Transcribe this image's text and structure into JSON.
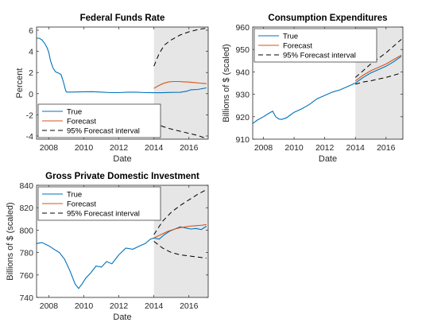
{
  "chart_data": [
    {
      "type": "line",
      "title": "Federal Funds Rate",
      "xlabel": "Date",
      "ylabel": "Percent",
      "xlim": [
        2007.3,
        2017.1
      ],
      "ylim": [
        -4.3,
        6.3
      ],
      "xticks": [
        2008,
        2010,
        2012,
        2014,
        2016
      ],
      "yticks": [
        -4,
        -2,
        0,
        2,
        4,
        6
      ],
      "forecast_start": 2014,
      "grid": false,
      "legend": [
        "True",
        "Forecast",
        "95% Forecast interval"
      ],
      "legend_position": "bottom-left",
      "series": [
        {
          "name": "True",
          "x": [
            2007.3,
            2007.45,
            2007.6,
            2007.75,
            2007.9,
            2008.0,
            2008.1,
            2008.25,
            2008.4,
            2008.55,
            2008.7,
            2008.85,
            2008.95,
            2009.0,
            2009.1,
            2009.5,
            2010.0,
            2010.5,
            2011.0,
            2011.5,
            2012.0,
            2012.5,
            2013.0,
            2013.5,
            2014.0,
            2014.5,
            2015.0,
            2015.5,
            2015.9,
            2016.1,
            2016.5,
            2017.0
          ],
          "y": [
            5.25,
            5.25,
            5.1,
            4.8,
            4.35,
            3.9,
            3.1,
            2.4,
            2.05,
            1.95,
            1.8,
            1.0,
            0.35,
            0.16,
            0.15,
            0.16,
            0.18,
            0.19,
            0.15,
            0.1,
            0.1,
            0.14,
            0.14,
            0.1,
            0.09,
            0.09,
            0.12,
            0.13,
            0.24,
            0.37,
            0.4,
            0.55
          ]
        },
        {
          "name": "Forecast",
          "x": [
            2014.0,
            2014.2,
            2014.5,
            2014.8,
            2015.1,
            2015.4,
            2015.7,
            2016.0,
            2016.3,
            2016.6,
            2017.0
          ],
          "y": [
            0.5,
            0.7,
            0.95,
            1.1,
            1.15,
            1.15,
            1.12,
            1.1,
            1.05,
            1.0,
            0.95
          ]
        },
        {
          "name": "95% Forecast interval",
          "x": [
            2014.0,
            2014.3,
            2014.6,
            2015.0,
            2015.5,
            2016.0,
            2016.5,
            2017.0
          ],
          "y": [
            2.6,
            3.8,
            4.6,
            5.1,
            5.55,
            5.85,
            6.05,
            6.2
          ]
        },
        {
          "name": "95% Forecast interval",
          "x": [
            2014.0,
            2014.5,
            2015.0,
            2015.5,
            2016.0,
            2016.5,
            2017.0
          ],
          "y": [
            -2.7,
            -3.1,
            -3.35,
            -3.55,
            -3.75,
            -3.95,
            -4.25
          ]
        }
      ]
    },
    {
      "type": "line",
      "title": "Consumption Expenditures",
      "xlabel": "Date",
      "ylabel": "Billions of $ (scaled)",
      "xlim": [
        2007.3,
        2017.1
      ],
      "ylim": [
        910,
        960
      ],
      "xticks": [
        2008,
        2010,
        2012,
        2014,
        2016
      ],
      "yticks": [
        910,
        920,
        930,
        940,
        950,
        960
      ],
      "forecast_start": 2014,
      "grid": false,
      "legend": [
        "True",
        "Forecast",
        "95% Forecast interval"
      ],
      "legend_position": "top-left",
      "series": [
        {
          "name": "True",
          "x": [
            2007.3,
            2007.6,
            2008.0,
            2008.3,
            2008.6,
            2008.8,
            2009.0,
            2009.2,
            2009.5,
            2009.8,
            2010.0,
            2010.5,
            2011.0,
            2011.5,
            2012.0,
            2012.5,
            2013.0,
            2013.5,
            2014.0,
            2014.5,
            2015.0,
            2015.5,
            2016.0,
            2016.5,
            2017.0
          ],
          "y": [
            917.0,
            918.5,
            920.0,
            921.3,
            922.5,
            920.0,
            919.0,
            918.8,
            919.5,
            921.0,
            922.0,
            923.5,
            925.5,
            928.0,
            929.5,
            931.0,
            932.0,
            933.5,
            935.0,
            937.5,
            939.5,
            941.0,
            942.5,
            944.5,
            947.0
          ]
        },
        {
          "name": "Forecast",
          "x": [
            2014.0,
            2014.5,
            2015.0,
            2015.5,
            2016.0,
            2016.5,
            2017.0
          ],
          "y": [
            936.0,
            938.5,
            940.5,
            942.0,
            943.5,
            945.5,
            947.5
          ]
        },
        {
          "name": "95% Forecast interval",
          "x": [
            2014.0,
            2014.5,
            2015.0,
            2015.5,
            2016.0,
            2016.5,
            2017.0
          ],
          "y": [
            937.5,
            940.5,
            943.5,
            946.0,
            948.5,
            951.5,
            954.5
          ]
        },
        {
          "name": "95% Forecast interval",
          "x": [
            2014.0,
            2014.5,
            2015.0,
            2015.5,
            2016.0,
            2016.5,
            2017.0
          ],
          "y": [
            934.5,
            935.5,
            936.0,
            936.8,
            937.5,
            938.5,
            939.5
          ]
        }
      ]
    },
    {
      "type": "line",
      "title": "Gross Private Domestic Investment",
      "xlabel": "Date",
      "ylabel": "Billions of $ (scaled)",
      "xlim": [
        2007.3,
        2017.1
      ],
      "ylim": [
        740,
        840
      ],
      "xticks": [
        2008,
        2010,
        2012,
        2014,
        2016
      ],
      "yticks": [
        740,
        760,
        780,
        800,
        820,
        840
      ],
      "forecast_start": 2014,
      "grid": false,
      "legend": [
        "True",
        "Forecast",
        "95% Forecast interval"
      ],
      "legend_position": "top-left",
      "series": [
        {
          "name": "True",
          "x": [
            2007.3,
            2007.6,
            2008.0,
            2008.3,
            2008.6,
            2008.9,
            2009.2,
            2009.5,
            2009.7,
            2009.9,
            2010.1,
            2010.4,
            2010.7,
            2011.0,
            2011.3,
            2011.6,
            2012.0,
            2012.4,
            2012.8,
            2013.2,
            2013.5,
            2013.8,
            2014.0,
            2014.3,
            2014.6,
            2014.9,
            2015.2,
            2015.5,
            2015.8,
            2016.1,
            2016.4,
            2016.7,
            2017.0
          ],
          "y": [
            788.0,
            789.0,
            786.0,
            783.0,
            780.0,
            774.0,
            764.0,
            752.0,
            748.0,
            752.0,
            757.0,
            762.0,
            768.0,
            767.0,
            772.0,
            770.0,
            778.0,
            784.0,
            783.0,
            786.0,
            788.0,
            792.0,
            793.0,
            792.0,
            796.0,
            799.0,
            801.0,
            803.0,
            802.0,
            801.0,
            801.5,
            800.5,
            803.5
          ]
        },
        {
          "name": "Forecast",
          "x": [
            2014.0,
            2014.4,
            2014.8,
            2015.2,
            2015.6,
            2016.0,
            2016.4,
            2016.8,
            2017.0
          ],
          "y": [
            793.0,
            796.0,
            799.0,
            801.0,
            802.5,
            803.5,
            804.0,
            804.5,
            805.0
          ]
        },
        {
          "name": "95% Forecast interval",
          "x": [
            2014.0,
            2014.5,
            2015.0,
            2015.5,
            2016.0,
            2016.5,
            2017.0
          ],
          "y": [
            796.0,
            808.0,
            816.0,
            822.0,
            827.0,
            832.0,
            836.0
          ]
        },
        {
          "name": "95% Forecast interval",
          "x": [
            2014.0,
            2014.5,
            2015.0,
            2015.5,
            2016.0,
            2016.5,
            2017.0
          ],
          "y": [
            790.0,
            784.0,
            780.0,
            778.0,
            777.0,
            776.0,
            775.0
          ]
        }
      ]
    }
  ],
  "colors": {
    "true": "#0072bd",
    "forecast": "#d95319",
    "interval": "#000000",
    "shade": "#e6e6e6"
  }
}
